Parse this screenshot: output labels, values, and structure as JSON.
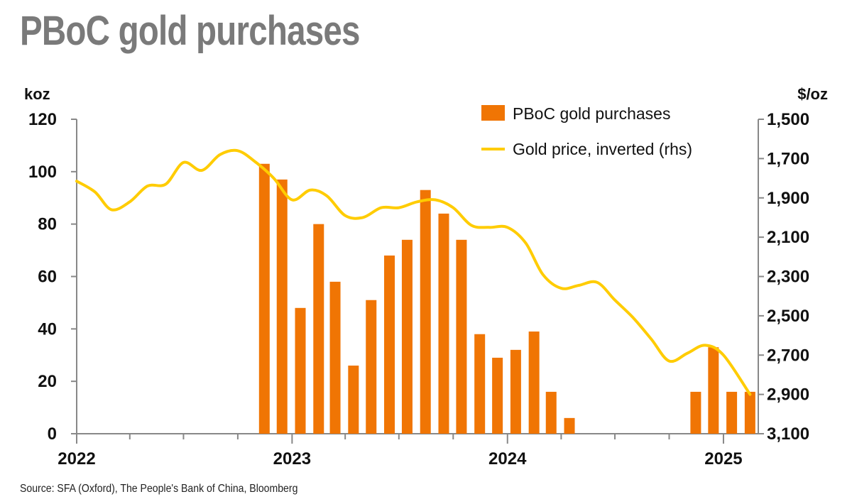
{
  "title": "PBoC gold purchases",
  "source": "Source: SFA (Oxford), The People's Bank of China, Bloomberg",
  "chart_data": {
    "type": "bar",
    "left_axis_unit": "koz",
    "right_axis_unit": "$/oz",
    "ylim": [
      0,
      120
    ],
    "y_ticks": [
      "0",
      "20",
      "40",
      "60",
      "80",
      "100",
      "120"
    ],
    "y2lim": [
      1500,
      3100
    ],
    "y2_inverted": true,
    "y2_ticks": [
      "1,500",
      "1,700",
      "1,900",
      "2,100",
      "2,300",
      "2,500",
      "2,700",
      "2,900",
      "3,100"
    ],
    "x_ticks": [
      "2022",
      "2023",
      "2024",
      "2025"
    ],
    "legend_position": "top-right",
    "colors": {
      "bars": "#f07504",
      "line": "#ffcc00",
      "axis": "#888888"
    },
    "series": [
      {
        "name": "PBoC gold purchases",
        "type": "bar",
        "axis": "left",
        "x": [
          "2022-11",
          "2022-12",
          "2023-01",
          "2023-02",
          "2023-03",
          "2023-04",
          "2023-05",
          "2023-06",
          "2023-07",
          "2023-08",
          "2023-09",
          "2023-10",
          "2023-11",
          "2023-12",
          "2024-01",
          "2024-02",
          "2024-03",
          "2024-04",
          "2024-11",
          "2024-12",
          "2025-01",
          "2025-02"
        ],
        "values": [
          103,
          97,
          48,
          80,
          58,
          26,
          51,
          68,
          74,
          93,
          84,
          74,
          38,
          29,
          32,
          39,
          16,
          6,
          16,
          33,
          16,
          16
        ]
      },
      {
        "name": "Gold price, inverted (rhs)",
        "type": "line",
        "axis": "right",
        "x": [
          "2022-01-01",
          "2022-02-01",
          "2022-03-01",
          "2022-04-01",
          "2022-05-01",
          "2022-06-01",
          "2022-07-01",
          "2022-08-01",
          "2022-09-01",
          "2022-10-01",
          "2022-11-01",
          "2022-12-01",
          "2023-01-01",
          "2023-02-01",
          "2023-03-01",
          "2023-04-01",
          "2023-05-01",
          "2023-06-01",
          "2023-07-01",
          "2023-08-01",
          "2023-09-01",
          "2023-10-01",
          "2023-11-01",
          "2023-12-01",
          "2024-01-01",
          "2024-02-01",
          "2024-03-01",
          "2024-04-01",
          "2024-05-01",
          "2024-06-01",
          "2024-07-01",
          "2024-08-01",
          "2024-09-01",
          "2024-10-01",
          "2024-11-01",
          "2024-12-01",
          "2025-01-01",
          "2025-02-15"
        ],
        "values": [
          1815,
          1870,
          1960,
          1920,
          1840,
          1830,
          1720,
          1760,
          1680,
          1660,
          1720,
          1800,
          1910,
          1860,
          1890,
          1990,
          2000,
          1950,
          1950,
          1920,
          1910,
          1950,
          2040,
          2050,
          2050,
          2130,
          2290,
          2360,
          2345,
          2330,
          2420,
          2510,
          2620,
          2730,
          2690,
          2650,
          2700,
          2900
        ]
      }
    ]
  }
}
